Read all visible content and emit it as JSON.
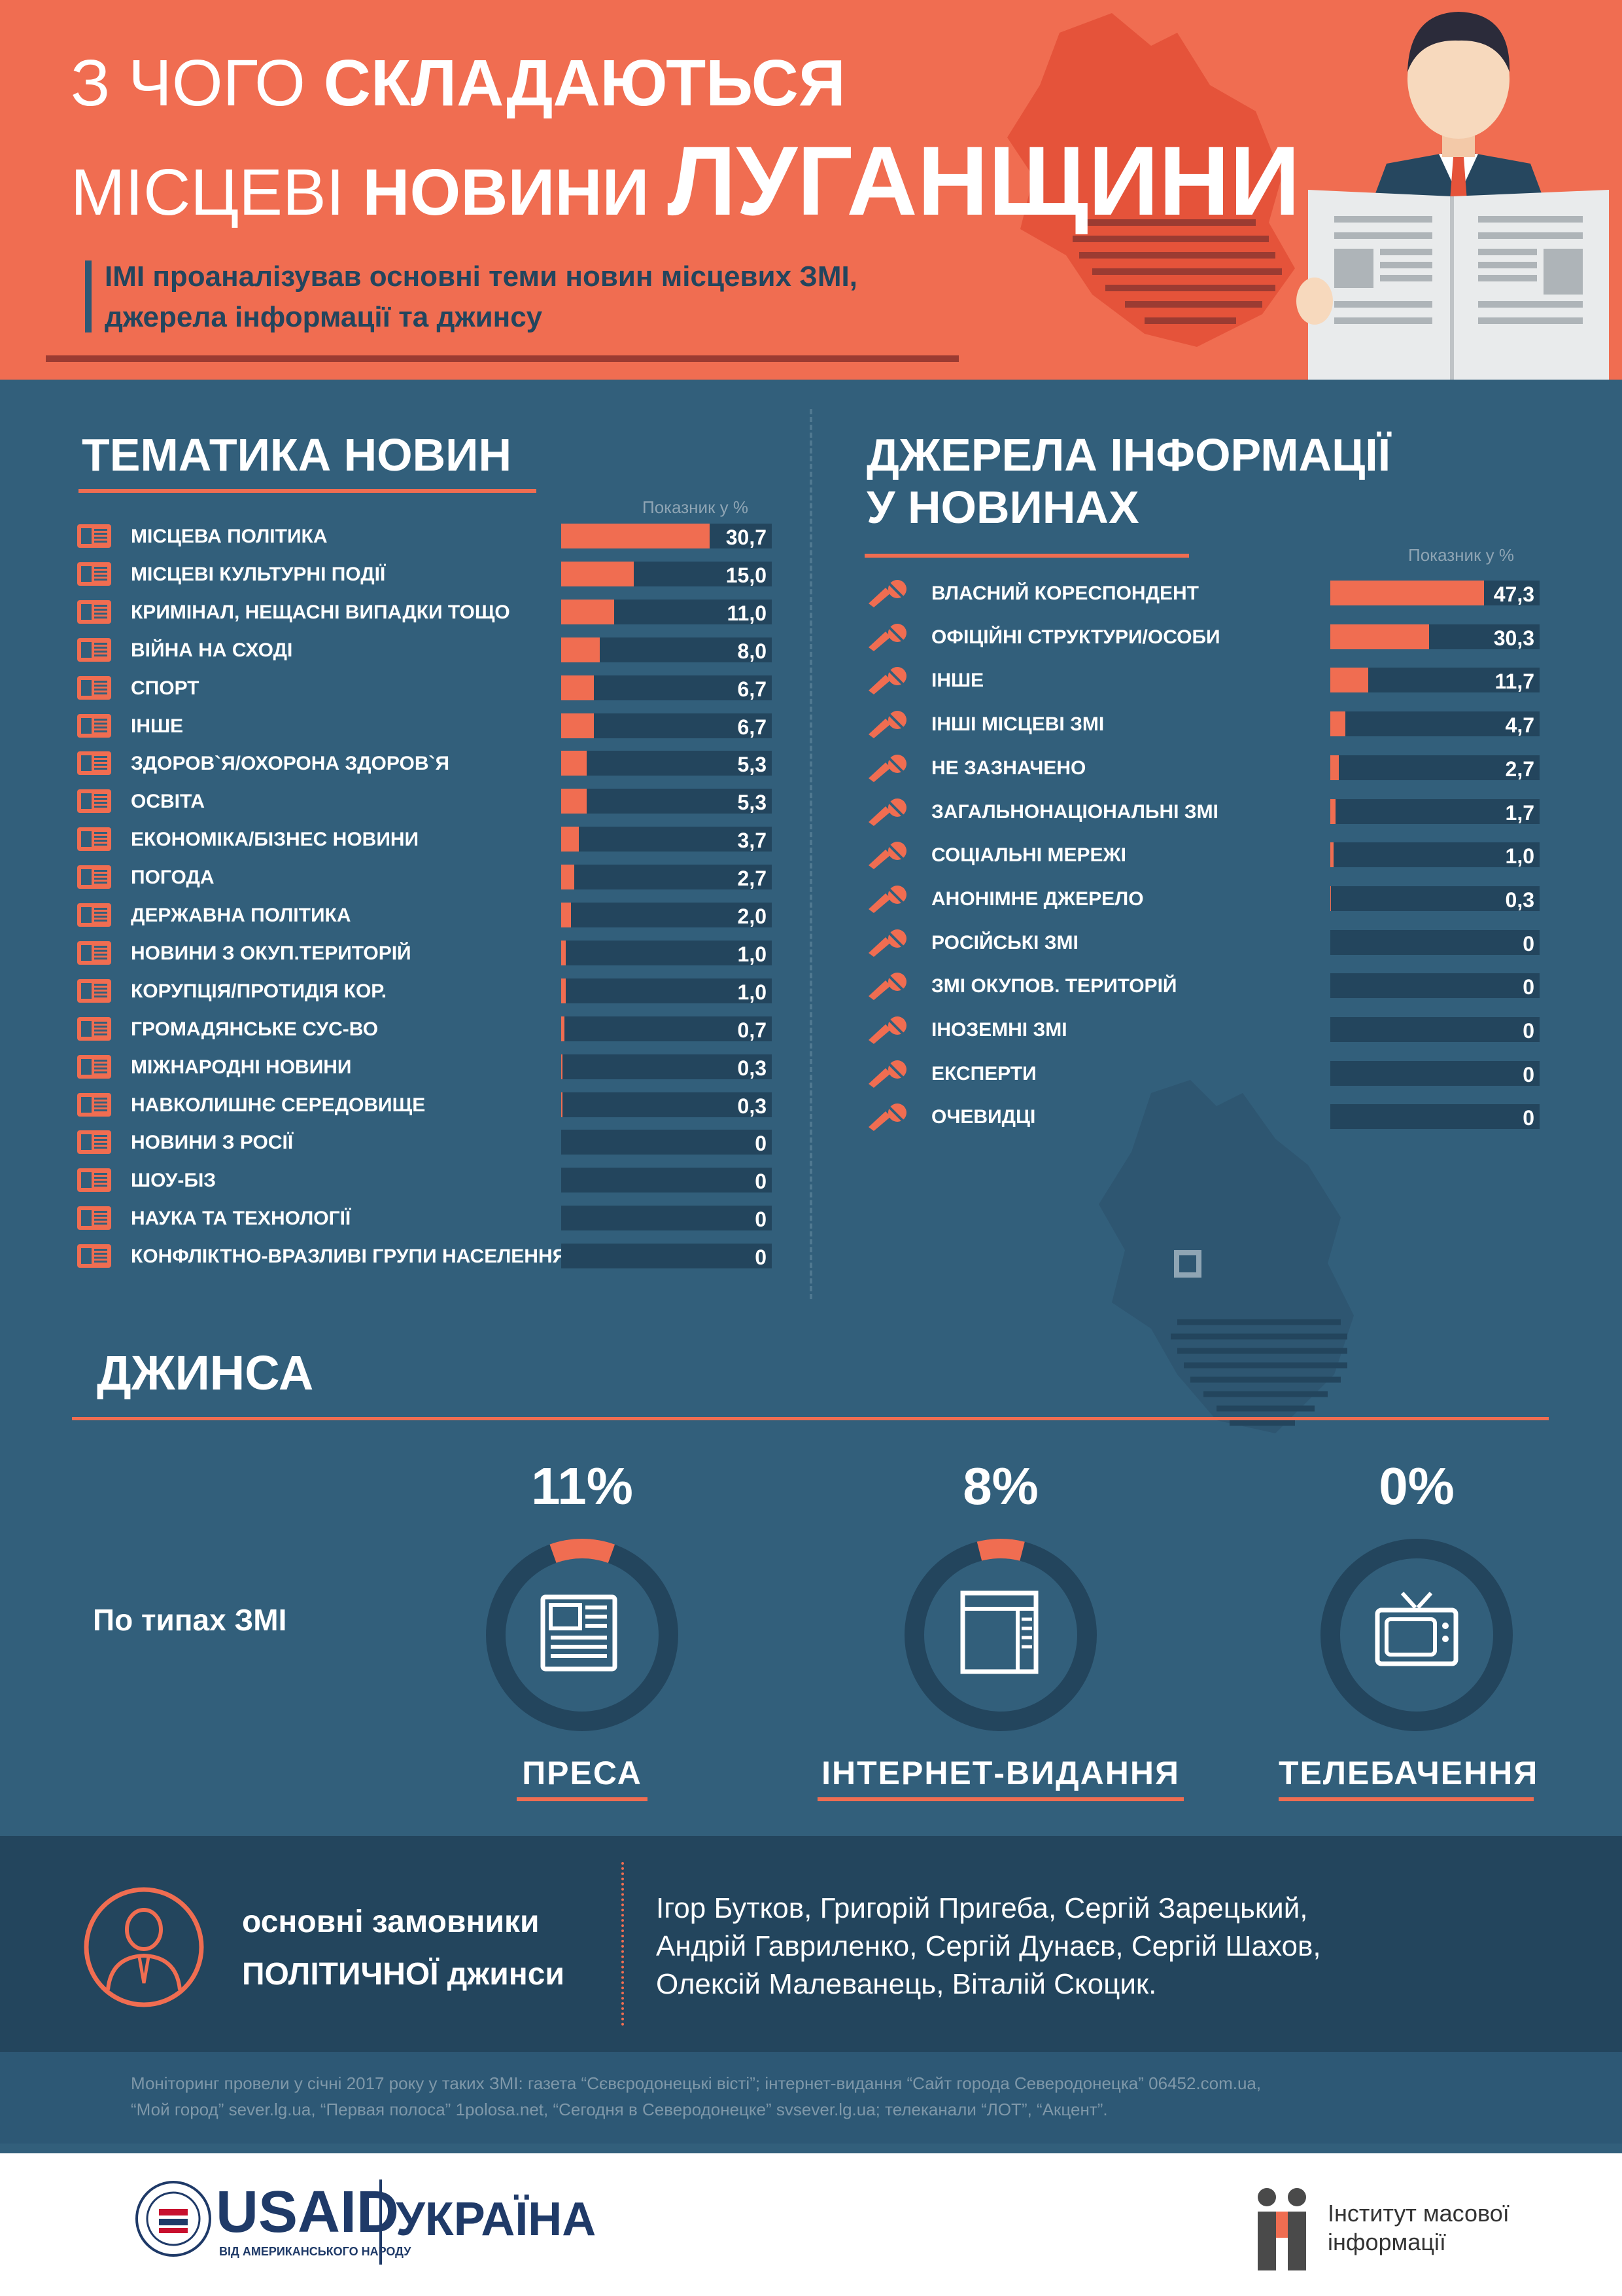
{
  "header": {
    "title_l1_light": "З ЧОГО",
    "title_l1_bold": "СКЛАДАЮТЬСЯ",
    "title_l2_light": "МІСЦЕВІ",
    "title_l2_bold": "НОВИНИ",
    "title_l2_big": "ЛУГАНЩИНИ",
    "subtitle_l1": "ІМІ проаналізував основні теми новин місцевих ЗМІ,",
    "subtitle_l2": "джерела інформації та джинсу"
  },
  "topics": {
    "title": "ТЕМАТИКА НОВИН",
    "scale_label": "Показник у %",
    "max": 30.7,
    "items": [
      {
        "label": "МІСЦЕВА ПОЛІТИКА",
        "value": "30,7",
        "num": 30.7
      },
      {
        "label": "МІСЦЕВІ КУЛЬТУРНІ ПОДІЇ",
        "value": "15,0",
        "num": 15.0
      },
      {
        "label": "КРИМІНАЛ, НЕЩАСНІ ВИПАДКИ ТОЩО",
        "value": "11,0",
        "num": 11.0
      },
      {
        "label": "ВІЙНА НА СХОДІ",
        "value": "8,0",
        "num": 8.0
      },
      {
        "label": "СПОРТ",
        "value": "6,7",
        "num": 6.7
      },
      {
        "label": "ІНШЕ",
        "value": "6,7",
        "num": 6.7
      },
      {
        "label": "ЗДОРОВ`Я/ОХОРОНА ЗДОРОВ`Я",
        "value": "5,3",
        "num": 5.3
      },
      {
        "label": "ОСВІТА",
        "value": "5,3",
        "num": 5.3
      },
      {
        "label": "ЕКОНОМІКА/БІЗНЕС НОВИНИ",
        "value": "3,7",
        "num": 3.7
      },
      {
        "label": "ПОГОДА",
        "value": "2,7",
        "num": 2.7
      },
      {
        "label": "ДЕРЖАВНА ПОЛІТИКА",
        "value": "2,0",
        "num": 2.0
      },
      {
        "label": "НОВИНИ З ОКУП.ТЕРИТОРІЙ",
        "value": "1,0",
        "num": 1.0
      },
      {
        "label": "КОРУПЦІЯ/ПРОТИДІЯ КОР.",
        "value": "1,0",
        "num": 1.0
      },
      {
        "label": "ГРОМАДЯНСЬКЕ СУС-ВО",
        "value": "0,7",
        "num": 0.7
      },
      {
        "label": "МІЖНАРОДНІ НОВИНИ",
        "value": "0,3",
        "num": 0.3
      },
      {
        "label": "НАВКОЛИШНЄ СЕРЕДОВИЩЕ",
        "value": "0,3",
        "num": 0.3
      },
      {
        "label": "НОВИНИ З РОСІЇ",
        "value": "0",
        "num": 0
      },
      {
        "label": "ШОУ-БІЗ",
        "value": "0",
        "num": 0
      },
      {
        "label": "НАУКА ТА ТЕХНОЛОГІЇ",
        "value": "0",
        "num": 0
      },
      {
        "label": "КОНФЛІКТНО-ВРАЗЛИВІ ГРУПИ НАСЕЛЕННЯ",
        "value": "0",
        "num": 0
      }
    ]
  },
  "sources": {
    "title_l1": "ДЖЕРЕЛА ІНФОРМАЦІЇ",
    "title_l2": "У НОВИНАХ",
    "scale_label": "Показник у %",
    "max": 47.3,
    "items": [
      {
        "label": "ВЛАСНИЙ КОРЕСПОНДЕНТ",
        "value": "47,3",
        "num": 47.3
      },
      {
        "label": "ОФІЦІЙНІ СТРУКТУРИ/ОСОБИ",
        "value": "30,3",
        "num": 30.3
      },
      {
        "label": "ІНШЕ",
        "value": "11,7",
        "num": 11.7
      },
      {
        "label": "ІНШІ МІСЦЕВІ ЗМІ",
        "value": "4,7",
        "num": 4.7
      },
      {
        "label": "НЕ ЗАЗНАЧЕНО",
        "value": "2,7",
        "num": 2.7
      },
      {
        "label": "ЗАГАЛЬНОНАЦІОНАЛЬНІ ЗМІ",
        "value": "1,7",
        "num": 1.7
      },
      {
        "label": "СОЦІАЛЬНІ МЕРЕЖІ",
        "value": "1,0",
        "num": 1.0
      },
      {
        "label": "АНОНІМНЕ ДЖЕРЕЛО",
        "value": "0,3",
        "num": 0.3
      },
      {
        "label": "РОСІЙСЬКІ ЗМІ",
        "value": "0",
        "num": 0
      },
      {
        "label": "ЗМІ ОКУПОВ. ТЕРИТОРІЙ",
        "value": "0",
        "num": 0
      },
      {
        "label": "ІНОЗЕМНІ ЗМІ",
        "value": "0",
        "num": 0
      },
      {
        "label": "ЕКСПЕРТИ",
        "value": "0",
        "num": 0
      },
      {
        "label": "ОЧЕВИДЦІ",
        "value": "0",
        "num": 0
      }
    ]
  },
  "jinsa": {
    "title": "ДЖИНСА",
    "by_type": "По типах ЗМІ",
    "items": [
      {
        "pct": "11%",
        "num": 11,
        "label": "ПРЕСА",
        "icon": "newspaper-icon"
      },
      {
        "pct": "8%",
        "num": 8,
        "label": "ІНТЕРНЕТ-ВИДАННЯ",
        "icon": "browser-icon"
      },
      {
        "pct": "0%",
        "num": 0,
        "label": "ТЕЛЕБАЧЕННЯ",
        "icon": "tv-icon"
      }
    ]
  },
  "clients": {
    "label_l1": "основні замовники",
    "label_l2": "ПОЛІТИЧНОЇ джинси",
    "names_l1": "Ігор Бутков, Григорій Пригеба, Сергій Зарецький,",
    "names_l2": "Андрій Гавриленко, Сергій Дунаєв, Сергій Шахов,",
    "names_l3": "Олексій Малеванець, Віталій Скоцик."
  },
  "footnote": {
    "l1": "Моніторинг провели у січні 2017 року у таких ЗМІ: газета “Сєвєродонецькі вісті”; інтернет-видання “Сайт города Северодонецка” 06452.com.ua,",
    "l2": "“Мой город” sever.lg.ua, “Первая полоса” 1polosa.net, “Сегодня в Северодонецке” svsever.lg.ua; телеканали “ЛОТ”, “Акцент”."
  },
  "logos": {
    "usaid": "USAID",
    "usaid_sub": "ВІД АМЕРИКАНСЬКОГО НАРОДУ",
    "ukraine": "УКРАЇНА",
    "imi_l1": "Інститут масової",
    "imi_l2": "інформації"
  },
  "colors": {
    "accent": "#f06d51",
    "bg": "#325f7b",
    "dark": "#23455d"
  }
}
